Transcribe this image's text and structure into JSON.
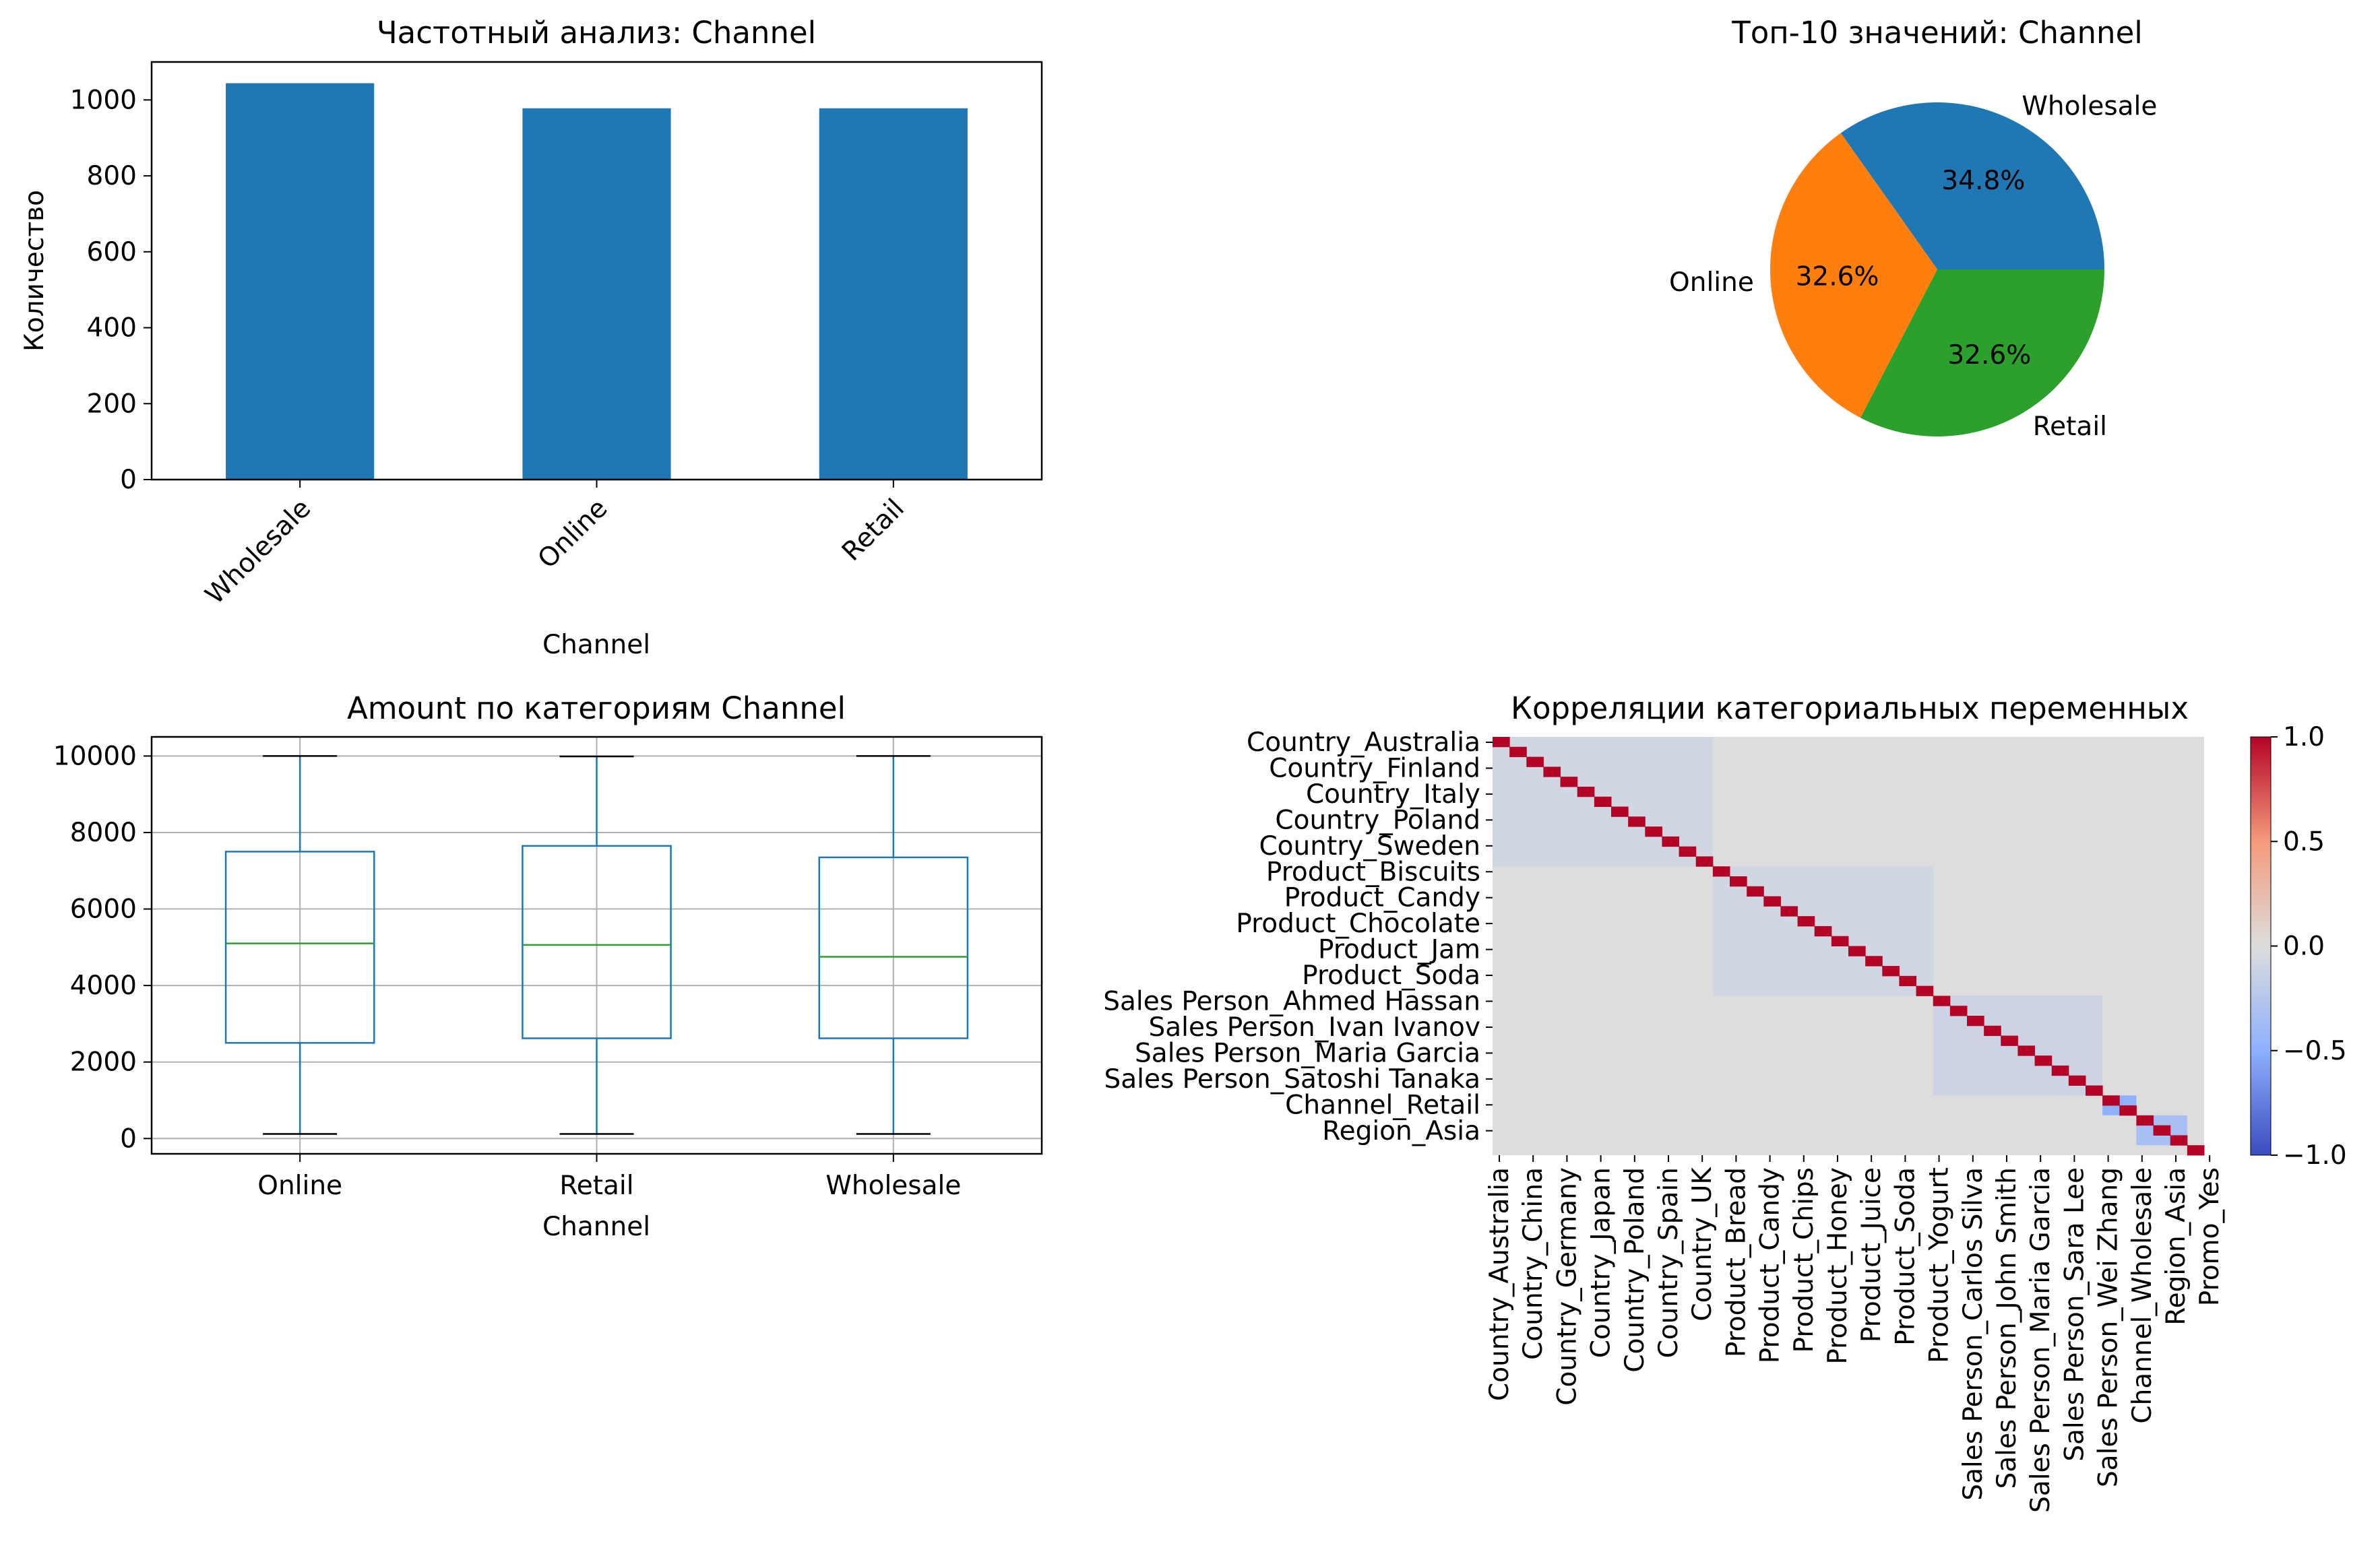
{
  "chart_data": [
    {
      "type": "bar",
      "title": "Частотный анализ: Channel",
      "xlabel": "Channel",
      "ylabel": "Количество",
      "categories": [
        "Wholesale",
        "Online",
        "Retail"
      ],
      "values": [
        1044,
        978,
        978
      ],
      "ylim": [
        0,
        1100
      ],
      "yticks": [
        0,
        200,
        400,
        600,
        800,
        1000
      ],
      "color": "#1f77b4",
      "grid": false
    },
    {
      "type": "pie",
      "title": "Топ-10 значений: Channel",
      "labels": [
        "Wholesale",
        "Online",
        "Retail"
      ],
      "pct_labels": [
        "34.8%",
        "32.6%",
        "32.6%"
      ],
      "values": [
        34.8,
        32.6,
        32.6
      ],
      "colors": [
        "#1f77b4",
        "#ff7f0e",
        "#2ca02c"
      ]
    },
    {
      "type": "box",
      "title": "Amount по категориям Channel",
      "xlabel": "Channel",
      "categories": [
        "Online",
        "Retail",
        "Wholesale"
      ],
      "boxes": [
        {
          "whislo": 120,
          "q1": 2500,
          "med": 5100,
          "q3": 7500,
          "whishi": 10000
        },
        {
          "whislo": 120,
          "q1": 2620,
          "med": 5060,
          "q3": 7650,
          "whishi": 9990
        },
        {
          "whislo": 120,
          "q1": 2620,
          "med": 4750,
          "q3": 7350,
          "whishi": 10000
        }
      ],
      "ylim": [
        -400,
        10500
      ],
      "yticks": [
        0,
        2000,
        4000,
        6000,
        8000,
        10000
      ],
      "grid": true,
      "box_color": "#1f77b4",
      "median_color": "#2ca02c"
    },
    {
      "type": "heatmap",
      "title": "Корреляции категориальных переменных",
      "size": 42,
      "y_labels": [
        "Country_Australia",
        "Country_Finland",
        "Country_Italy",
        "Country_Poland",
        "Country_Sweden",
        "Product_Biscuits",
        "Product_Candy",
        "Product_Chocolate",
        "Product_Jam",
        "Product_Soda",
        "Sales Person_Ahmed Hassan",
        "Sales Person_Ivan Ivanov",
        "Sales Person_Maria Garcia",
        "Sales Person_Satoshi Tanaka",
        "Channel_Retail",
        "Region_Asia"
      ],
      "x_labels": [
        "Country_Australia",
        "Country_China",
        "Country_Germany",
        "Country_Japan",
        "Country_Poland",
        "Country_Spain",
        "Country_UK",
        "Product_Bread",
        "Product_Candy",
        "Product_Chips",
        "Product_Honey",
        "Product_Juice",
        "Product_Soda",
        "Product_Yogurt",
        "Sales Person_Carlos Silva",
        "Sales Person_John Smith",
        "Sales Person_Maria Garcia",
        "Sales Person_Sara Lee",
        "Sales Person_Wei Zhang",
        "Channel_Wholesale",
        "Region_Asia",
        "Promo_Yes"
      ],
      "groups": [
        {
          "name": "Country",
          "start": 0,
          "end": 13,
          "within_corr": -0.08
        },
        {
          "name": "Product",
          "start": 13,
          "end": 26,
          "within_corr": -0.08
        },
        {
          "name": "Sales Person",
          "start": 26,
          "end": 36,
          "within_corr": -0.11
        },
        {
          "name": "Channel",
          "start": 36,
          "end": 38,
          "within_corr": -0.48
        },
        {
          "name": "Region",
          "start": 38,
          "end": 41,
          "within_corr": -0.33
        },
        {
          "name": "Promo",
          "start": 41,
          "end": 42,
          "within_corr": 0
        }
      ],
      "diagonal": 1.0,
      "off_group_corr": 0.0,
      "colormap": "coolwarm",
      "vmin": -1.0,
      "vmax": 1.0,
      "colorbar_ticks": [
        "1.0",
        "0.5",
        "0.0",
        "−0.5",
        "−1.0"
      ]
    }
  ]
}
